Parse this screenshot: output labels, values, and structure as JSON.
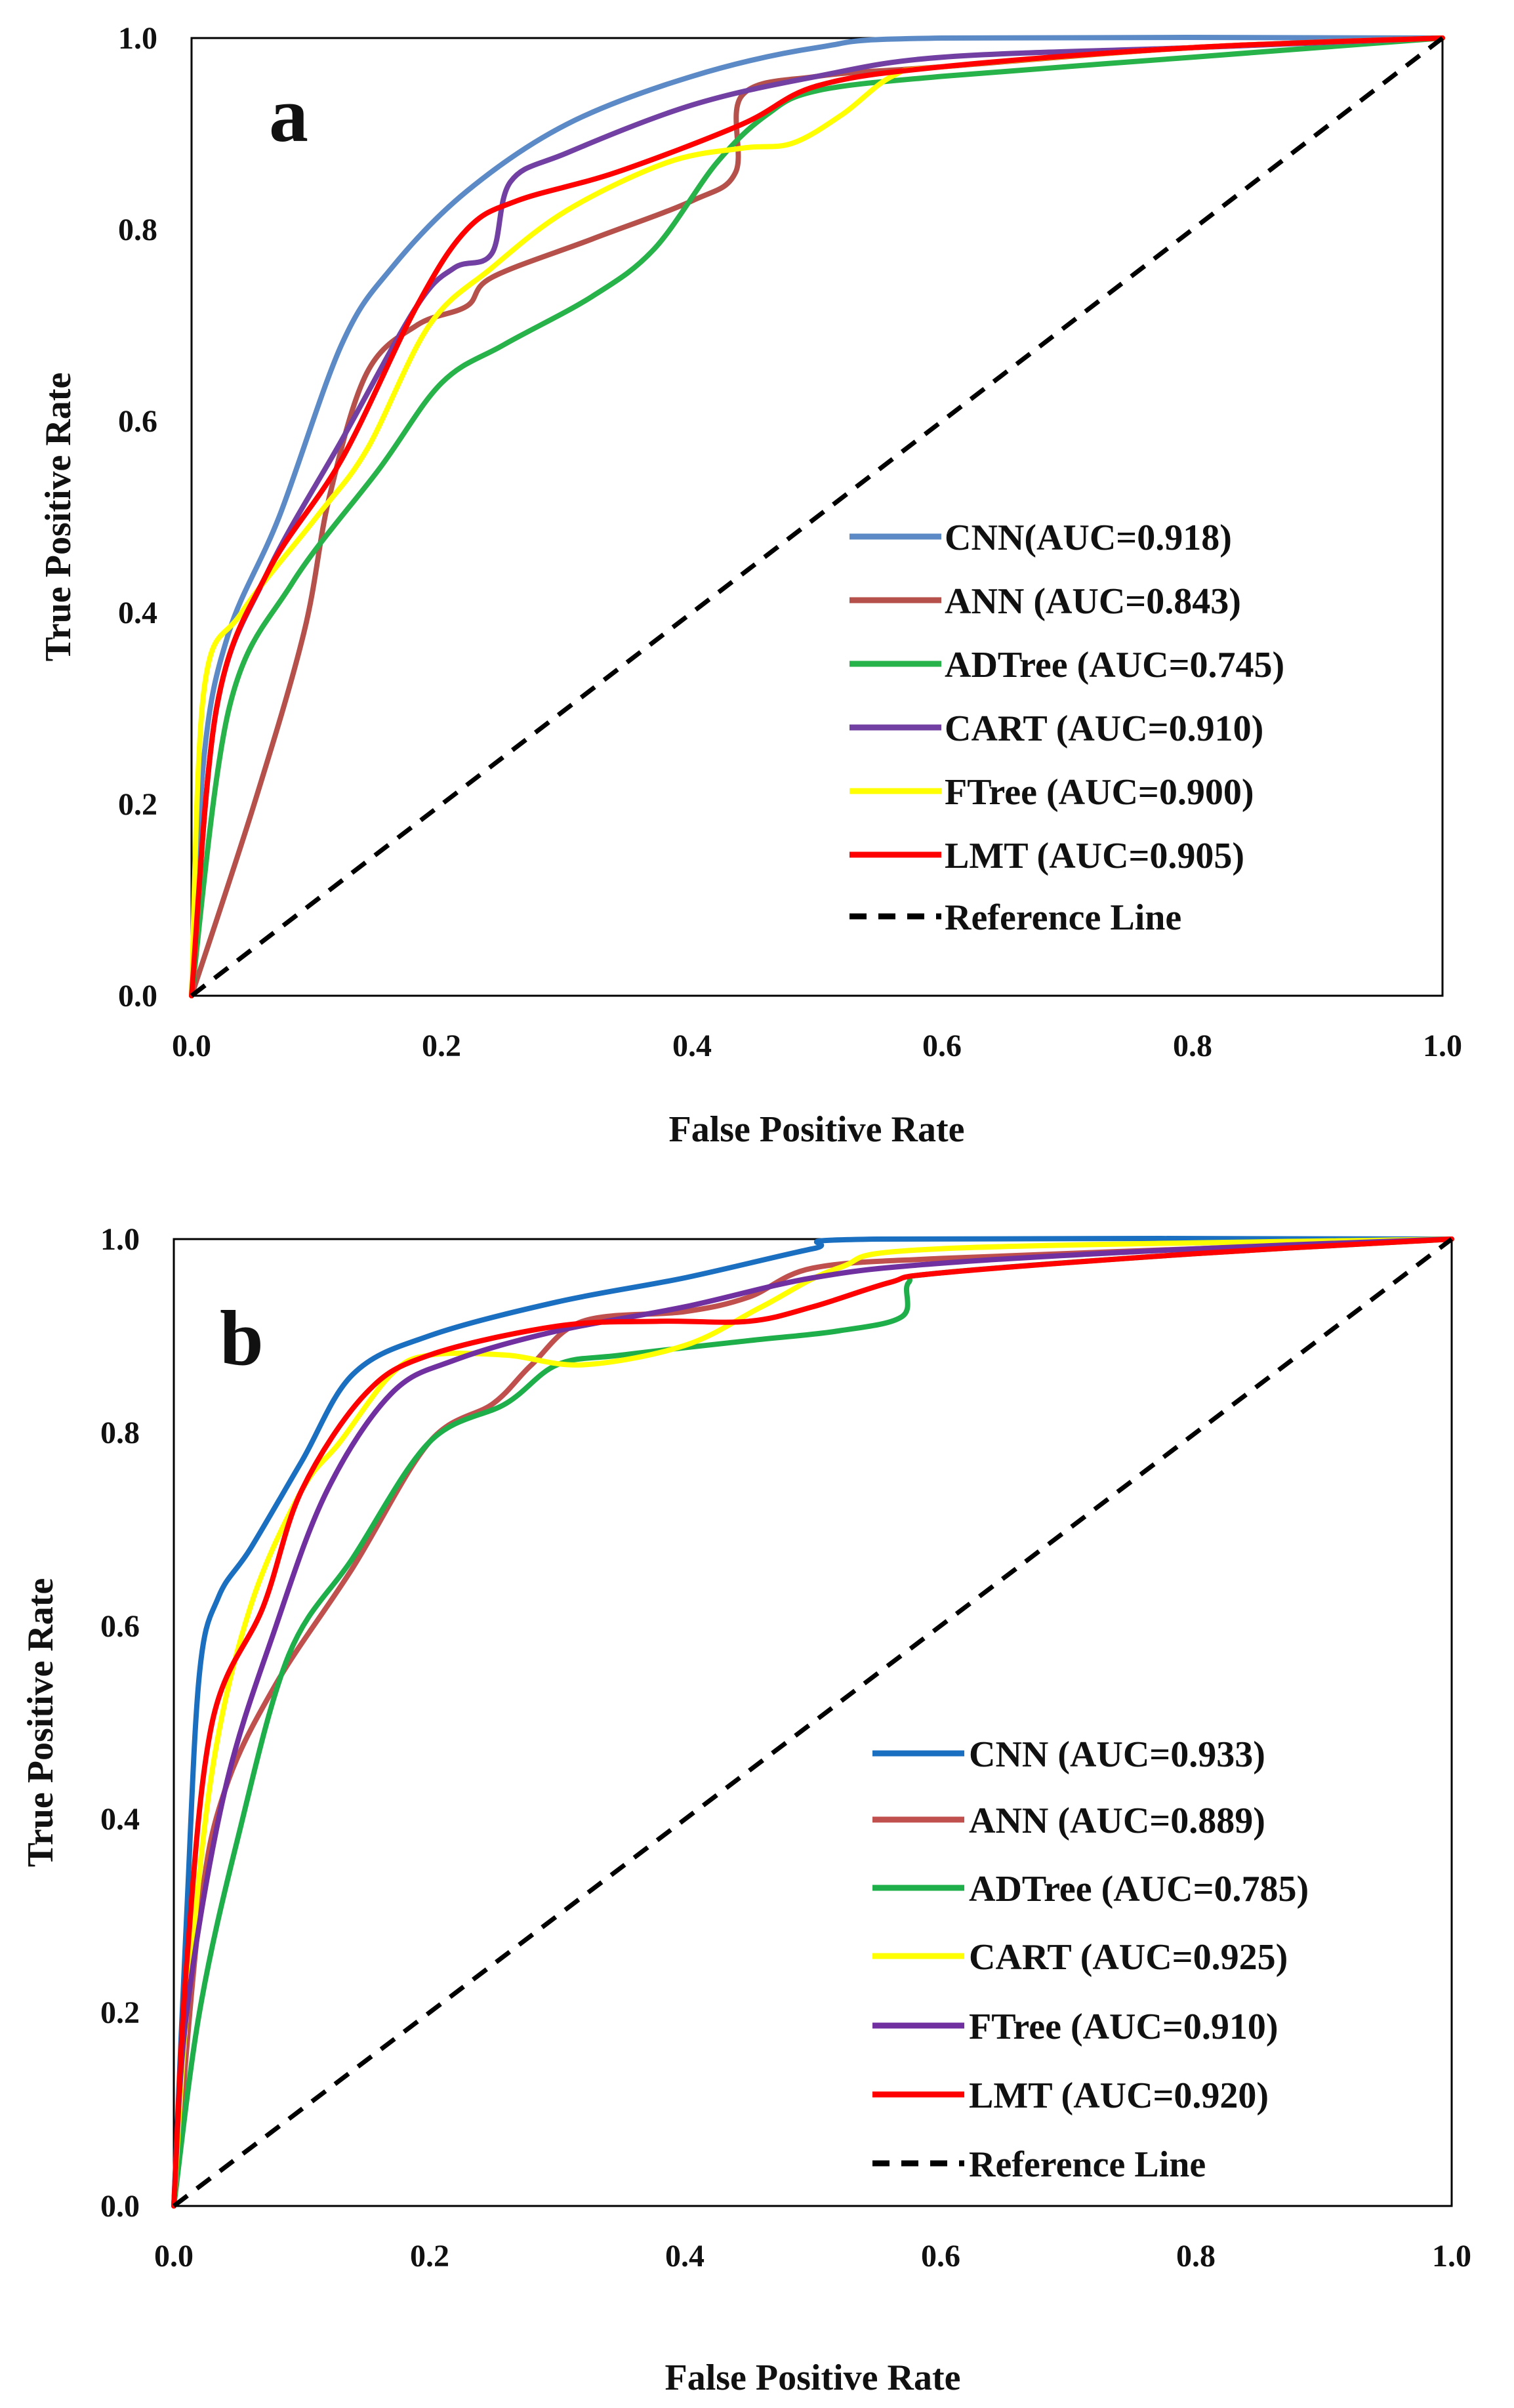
{
  "chart_data": [
    {
      "type": "line",
      "panel_label": "a",
      "xlabel": "False Positive Rate",
      "ylabel": "True Positive Rate",
      "xlim": [
        0,
        1
      ],
      "ylim": [
        0,
        1
      ],
      "x_ticks": [
        "0.0",
        "0.2",
        "0.4",
        "0.6",
        "0.8",
        "1.0"
      ],
      "y_ticks": [
        "0.0",
        "0.2",
        "0.4",
        "0.6",
        "0.8",
        "1.0"
      ],
      "legend_position": "center-right",
      "series": [
        {
          "name": "CNN(AUC=0.918)",
          "color": "#5b8ac6",
          "points": [
            [
              0,
              0
            ],
            [
              0.01,
              0.25
            ],
            [
              0.03,
              0.38
            ],
            [
              0.07,
              0.5
            ],
            [
              0.12,
              0.68
            ],
            [
              0.16,
              0.76
            ],
            [
              0.22,
              0.84
            ],
            [
              0.3,
              0.91
            ],
            [
              0.4,
              0.96
            ],
            [
              0.5,
              0.99
            ],
            [
              0.6,
              1.0
            ],
            [
              1,
              1
            ]
          ]
        },
        {
          "name": "ANN (AUC=0.843)",
          "color": "#b5504b",
          "points": [
            [
              0,
              0
            ],
            [
              0.05,
              0.2
            ],
            [
              0.09,
              0.38
            ],
            [
              0.11,
              0.52
            ],
            [
              0.14,
              0.65
            ],
            [
              0.18,
              0.7
            ],
            [
              0.22,
              0.72
            ],
            [
              0.24,
              0.75
            ],
            [
              0.32,
              0.79
            ],
            [
              0.4,
              0.83
            ],
            [
              0.435,
              0.86
            ],
            [
              0.44,
              0.94
            ],
            [
              0.5,
              0.96
            ],
            [
              0.6,
              0.97
            ],
            [
              0.8,
              0.99
            ],
            [
              1,
              1
            ]
          ]
        },
        {
          "name": "ADTree (AUC=0.745)",
          "color": "#27b24a",
          "points": [
            [
              0,
              0
            ],
            [
              0.03,
              0.3
            ],
            [
              0.08,
              0.43
            ],
            [
              0.15,
              0.55
            ],
            [
              0.2,
              0.64
            ],
            [
              0.25,
              0.68
            ],
            [
              0.32,
              0.73
            ],
            [
              0.37,
              0.78
            ],
            [
              0.42,
              0.87
            ],
            [
              0.46,
              0.92
            ],
            [
              0.5,
              0.945
            ],
            [
              0.6,
              0.96
            ],
            [
              0.8,
              0.98
            ],
            [
              1,
              1
            ]
          ]
        },
        {
          "name": "CART (AUC=0.910)",
          "color": "#7140a2",
          "points": [
            [
              0,
              0
            ],
            [
              0.02,
              0.3
            ],
            [
              0.06,
              0.44
            ],
            [
              0.12,
              0.58
            ],
            [
              0.18,
              0.72
            ],
            [
              0.21,
              0.76
            ],
            [
              0.24,
              0.775
            ],
            [
              0.255,
              0.85
            ],
            [
              0.3,
              0.88
            ],
            [
              0.4,
              0.93
            ],
            [
              0.5,
              0.96
            ],
            [
              0.6,
              0.98
            ],
            [
              0.8,
              0.99
            ],
            [
              1,
              1
            ]
          ]
        },
        {
          "name": "FTree (AUC=0.900)",
          "color": "#ffff00",
          "points": [
            [
              0,
              0
            ],
            [
              0.01,
              0.32
            ],
            [
              0.04,
              0.4
            ],
            [
              0.1,
              0.5
            ],
            [
              0.14,
              0.57
            ],
            [
              0.19,
              0.7
            ],
            [
              0.24,
              0.76
            ],
            [
              0.3,
              0.82
            ],
            [
              0.38,
              0.87
            ],
            [
              0.44,
              0.885
            ],
            [
              0.48,
              0.89
            ],
            [
              0.52,
              0.92
            ],
            [
              0.56,
              0.96
            ],
            [
              0.6,
              0.97
            ],
            [
              0.8,
              0.99
            ],
            [
              1,
              1
            ]
          ]
        },
        {
          "name": "LMT (AUC=0.905)",
          "color": "#ff0000",
          "points": [
            [
              0,
              0
            ],
            [
              0.02,
              0.3
            ],
            [
              0.06,
              0.44
            ],
            [
              0.12,
              0.56
            ],
            [
              0.18,
              0.72
            ],
            [
              0.22,
              0.8
            ],
            [
              0.26,
              0.83
            ],
            [
              0.34,
              0.86
            ],
            [
              0.44,
              0.91
            ],
            [
              0.5,
              0.95
            ],
            [
              0.6,
              0.97
            ],
            [
              0.8,
              0.99
            ],
            [
              1,
              1
            ]
          ]
        },
        {
          "name": "Reference Line",
          "color": "#000000",
          "dashed": true,
          "points": [
            [
              0,
              0
            ],
            [
              1,
              1
            ]
          ]
        }
      ]
    },
    {
      "type": "line",
      "panel_label": "b",
      "xlabel": "False Positive Rate",
      "ylabel": "True Positive Rate",
      "xlim": [
        0,
        1
      ],
      "ylim": [
        0,
        1
      ],
      "x_ticks": [
        "0.0",
        "0.2",
        "0.4",
        "0.6",
        "0.8",
        "1.0"
      ],
      "y_ticks": [
        "0.0",
        "0.2",
        "0.4",
        "0.6",
        "0.8",
        "1.0"
      ],
      "legend_position": "bottom-right",
      "series": [
        {
          "name": "CNN (AUC=0.933)",
          "color": "#1a6fc1",
          "points": [
            [
              0,
              0
            ],
            [
              0.01,
              0.3
            ],
            [
              0.02,
              0.55
            ],
            [
              0.035,
              0.63
            ],
            [
              0.06,
              0.68
            ],
            [
              0.1,
              0.77
            ],
            [
              0.14,
              0.86
            ],
            [
              0.2,
              0.9
            ],
            [
              0.3,
              0.935
            ],
            [
              0.4,
              0.96
            ],
            [
              0.5,
              0.99
            ],
            [
              0.55,
              1.0
            ],
            [
              1,
              1
            ]
          ]
        },
        {
          "name": "ANN (AUC=0.889)",
          "color": "#c0504d",
          "points": [
            [
              0,
              0
            ],
            [
              0.02,
              0.3
            ],
            [
              0.04,
              0.43
            ],
            [
              0.08,
              0.54
            ],
            [
              0.14,
              0.66
            ],
            [
              0.2,
              0.79
            ],
            [
              0.25,
              0.83
            ],
            [
              0.28,
              0.87
            ],
            [
              0.32,
              0.915
            ],
            [
              0.4,
              0.925
            ],
            [
              0.45,
              0.94
            ],
            [
              0.5,
              0.97
            ],
            [
              0.6,
              0.98
            ],
            [
              0.8,
              0.99
            ],
            [
              1,
              1
            ]
          ]
        },
        {
          "name": "ADTree (AUC=0.785)",
          "color": "#1eaf4b",
          "points": [
            [
              0,
              0
            ],
            [
              0.02,
              0.2
            ],
            [
              0.05,
              0.38
            ],
            [
              0.09,
              0.57
            ],
            [
              0.14,
              0.67
            ],
            [
              0.2,
              0.79
            ],
            [
              0.26,
              0.83
            ],
            [
              0.3,
              0.87
            ],
            [
              0.35,
              0.88
            ],
            [
              0.45,
              0.895
            ],
            [
              0.52,
              0.905
            ],
            [
              0.57,
              0.92
            ],
            [
              0.575,
              0.955
            ],
            [
              0.6,
              0.965
            ],
            [
              0.8,
              0.985
            ],
            [
              1,
              1
            ]
          ]
        },
        {
          "name": "CART (AUC=0.925)",
          "color": "#ffff00",
          "points": [
            [
              0,
              0
            ],
            [
              0.01,
              0.2
            ],
            [
              0.03,
              0.45
            ],
            [
              0.06,
              0.62
            ],
            [
              0.1,
              0.74
            ],
            [
              0.13,
              0.79
            ],
            [
              0.17,
              0.86
            ],
            [
              0.2,
              0.88
            ],
            [
              0.26,
              0.88
            ],
            [
              0.32,
              0.87
            ],
            [
              0.4,
              0.89
            ],
            [
              0.46,
              0.93
            ],
            [
              0.52,
              0.97
            ],
            [
              0.6,
              0.99
            ],
            [
              1,
              1
            ]
          ]
        },
        {
          "name": "FTree (AUC=0.910)",
          "color": "#7030a0",
          "points": [
            [
              0,
              0
            ],
            [
              0.01,
              0.2
            ],
            [
              0.04,
              0.43
            ],
            [
              0.08,
              0.6
            ],
            [
              0.12,
              0.74
            ],
            [
              0.17,
              0.84
            ],
            [
              0.22,
              0.875
            ],
            [
              0.3,
              0.905
            ],
            [
              0.4,
              0.93
            ],
            [
              0.5,
              0.96
            ],
            [
              0.6,
              0.975
            ],
            [
              0.8,
              0.99
            ],
            [
              1,
              1
            ]
          ]
        },
        {
          "name": "LMT (AUC=0.920)",
          "color": "#ff0000",
          "points": [
            [
              0,
              0
            ],
            [
              0.01,
              0.25
            ],
            [
              0.03,
              0.5
            ],
            [
              0.07,
              0.62
            ],
            [
              0.1,
              0.74
            ],
            [
              0.15,
              0.84
            ],
            [
              0.2,
              0.88
            ],
            [
              0.3,
              0.91
            ],
            [
              0.38,
              0.915
            ],
            [
              0.45,
              0.915
            ],
            [
              0.5,
              0.93
            ],
            [
              0.56,
              0.955
            ],
            [
              0.6,
              0.965
            ],
            [
              0.8,
              0.985
            ],
            [
              1,
              1
            ]
          ]
        },
        {
          "name": "Reference Line",
          "color": "#000000",
          "dashed": true,
          "points": [
            [
              0,
              0
            ],
            [
              1,
              1
            ]
          ]
        }
      ]
    }
  ]
}
